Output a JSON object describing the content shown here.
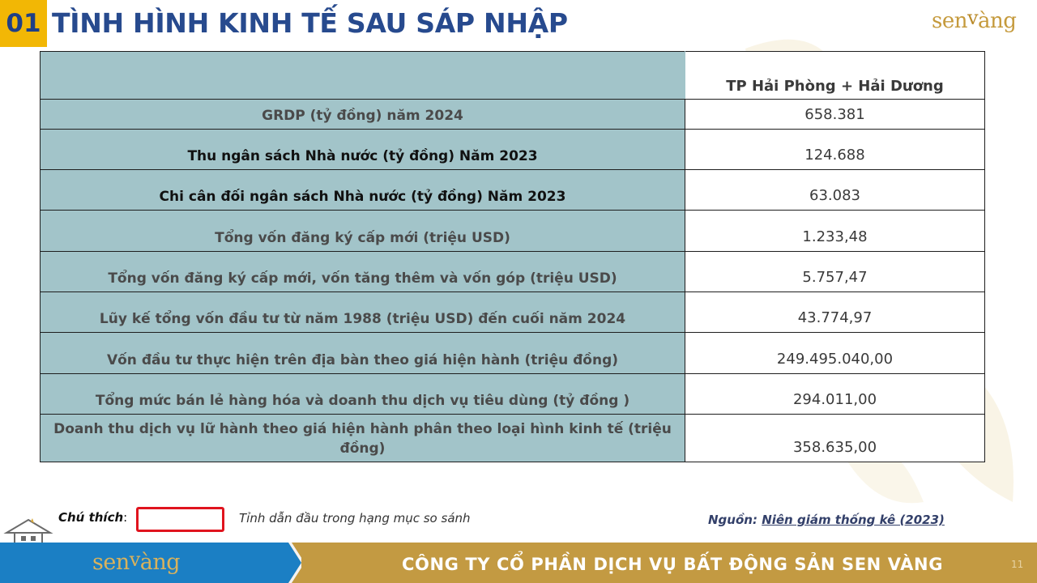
{
  "header": {
    "section_number": "01",
    "title": "TÌNH HÌNH KINH TẾ SAU SÁP NHẬP",
    "logo_text_left": "sen",
    "logo_text_right": "àng"
  },
  "table": {
    "column_header": "TP Hải Phòng + Hải Dương",
    "rows": [
      {
        "label": "GRDP (tỷ đồng) năm 2024",
        "value": "658.381"
      },
      {
        "label": "Thu ngân sách Nhà nước (tỷ đồng) Năm 2023",
        "value": "124.688"
      },
      {
        "label": "Chi cân đối ngân sách Nhà nước (tỷ đồng) Năm 2023",
        "value": "63.083"
      },
      {
        "label": "Tổng vốn đăng ký cấp mới (triệu USD)",
        "value": "1.233,48"
      },
      {
        "label": "Tổng vốn đăng ký cấp mới, vốn tăng thêm và vốn góp (triệu USD)",
        "value": "5.757,47"
      },
      {
        "label": "Lũy kế tổng vốn đầu tư từ năm 1988 (triệu USD) đến cuối năm 2024",
        "value": "43.774,97"
      },
      {
        "label": "Vốn đầu tư thực hiện trên địa bàn theo giá hiện hành (triệu đồng)",
        "value": "249.495.040,00"
      },
      {
        "label": "Tổng mức bán lẻ hàng hóa và doanh thu dịch vụ tiêu dùng (tỷ đồng )",
        "value": "294.011,00"
      },
      {
        "label": "Doanh thu dịch vụ lữ hành theo giá hiện hành phân theo loại hình kinh tế (triệu đồng)",
        "value": "358.635,00"
      }
    ]
  },
  "legend": {
    "label": "Chú thích",
    "colon": ":",
    "description": "Tỉnh dẫn đầu trong hạng mục so sánh",
    "box_color": "#e0141e"
  },
  "source": {
    "prefix": "Nguồn:",
    "link_text": "Niên giám thống kê (2023)"
  },
  "footer": {
    "logo_text_left": "sen",
    "logo_text_right": "àng",
    "company_name": "CÔNG TY CỔ PHẦN DỊCH VỤ BẤT ĐỘNG SẢN SEN VÀNG",
    "page_number": "11"
  },
  "colors": {
    "badge": "#f2b705",
    "title": "#274a8e",
    "label_fill": "#a2c4c9",
    "footer_gold": "#c39a42",
    "footer_blue": "#1b7fc4"
  }
}
